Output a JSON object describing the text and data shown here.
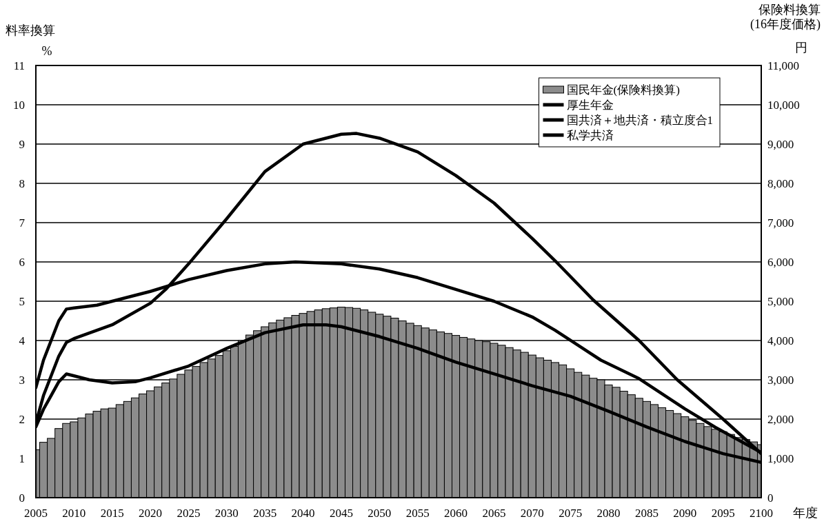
{
  "chart_data": {
    "type": "line",
    "xlabel": "年度",
    "ylabel": "料率換算",
    "y2label": "保険料換算(16年度価格)",
    "annotations": [
      "%",
      "円"
    ],
    "xlim": [
      2005,
      2100
    ],
    "xticks": [
      2005,
      2010,
      2015,
      2020,
      2025,
      2030,
      2035,
      2040,
      2045,
      2050,
      2055,
      2060,
      2065,
      2070,
      2075,
      2080,
      2085,
      2090,
      2095,
      2100
    ],
    "ylim": [
      0,
      11
    ],
    "yticks": [
      0,
      1,
      2,
      3,
      4,
      5,
      6,
      7,
      8,
      9,
      10,
      11
    ],
    "y2lim": [
      0,
      11000
    ],
    "y2ticks": [
      0,
      {
        "value": 1000,
        "label": "1,000"
      },
      {
        "value": 2000,
        "label": "2,000"
      },
      {
        "value": 3000,
        "label": "3,000"
      },
      {
        "value": 4000,
        "label": "4,000"
      },
      {
        "value": 5000,
        "label": "5,000"
      },
      {
        "value": 6000,
        "label": "6,000"
      },
      {
        "value": 7000,
        "label": "7,000"
      },
      {
        "value": 8000,
        "label": "8,000"
      },
      {
        "value": 9000,
        "label": "9,000"
      },
      {
        "value": 10000,
        "label": "10,000"
      },
      {
        "value": 11000,
        "label": "11,000"
      }
    ],
    "grid": "y",
    "legend": "top right",
    "line_style": "solid",
    "marker": "none",
    "series": [
      {
        "name": "国民年金(保険料換算)",
        "type": "bar",
        "axis": "y2",
        "color": "#8c8c8c",
        "x": [
          2005,
          2006,
          2007,
          2008,
          2009,
          2010,
          2011,
          2012,
          2013,
          2014,
          2015,
          2016,
          2017,
          2018,
          2019,
          2020,
          2021,
          2022,
          2023,
          2024,
          2025,
          2026,
          2027,
          2028,
          2029,
          2030,
          2031,
          2032,
          2033,
          2034,
          2035,
          2036,
          2037,
          2038,
          2039,
          2040,
          2041,
          2042,
          2043,
          2044,
          2045,
          2046,
          2047,
          2048,
          2049,
          2050,
          2051,
          2052,
          2053,
          2054,
          2055,
          2056,
          2057,
          2058,
          2059,
          2060,
          2061,
          2062,
          2063,
          2064,
          2065,
          2066,
          2067,
          2068,
          2069,
          2070,
          2071,
          2072,
          2073,
          2074,
          2075,
          2076,
          2077,
          2078,
          2079,
          2080,
          2081,
          2082,
          2083,
          2084,
          2085,
          2086,
          2087,
          2088,
          2089,
          2090,
          2091,
          2092,
          2093,
          2094,
          2095,
          2096,
          2097,
          2098,
          2099,
          2100
        ],
        "values": [
          1220,
          1410,
          1510,
          1760,
          1890,
          1930,
          2030,
          2130,
          2200,
          2260,
          2280,
          2370,
          2450,
          2540,
          2640,
          2720,
          2820,
          2920,
          3020,
          3140,
          3250,
          3340,
          3440,
          3530,
          3620,
          3740,
          3850,
          4000,
          4140,
          4250,
          4350,
          4450,
          4520,
          4580,
          4640,
          4690,
          4740,
          4780,
          4810,
          4830,
          4850,
          4840,
          4820,
          4780,
          4720,
          4670,
          4620,
          4570,
          4500,
          4440,
          4380,
          4320,
          4270,
          4220,
          4180,
          4130,
          4080,
          4040,
          4000,
          3970,
          3930,
          3880,
          3820,
          3760,
          3700,
          3630,
          3560,
          3500,
          3440,
          3380,
          3280,
          3190,
          3120,
          3040,
          3000,
          2870,
          2810,
          2710,
          2620,
          2530,
          2450,
          2370,
          2290,
          2220,
          2140,
          2060,
          1970,
          1890,
          1810,
          1740,
          1680,
          1610,
          1530,
          1480,
          1420,
          1350
        ]
      },
      {
        "name": "厚生年金",
        "color": "#000000",
        "x": [
          2005,
          2006,
          2007,
          2008,
          2009,
          2010,
          2015,
          2020,
          2022,
          2025,
          2030,
          2035,
          2040,
          2045,
          2047,
          2050,
          2055,
          2060,
          2065,
          2070,
          2073,
          2078,
          2084,
          2089,
          2095,
          2100
        ],
        "values": [
          1.9,
          2.6,
          3.1,
          3.6,
          3.95,
          4.05,
          4.4,
          4.95,
          5.3,
          5.95,
          7.1,
          8.3,
          9.0,
          9.25,
          9.27,
          9.15,
          8.8,
          8.2,
          7.5,
          6.6,
          6.03,
          5.03,
          4.0,
          3.0,
          2.0,
          1.12
        ]
      },
      {
        "name": "国共済＋地共済・積立度合1",
        "color": "#000000",
        "x": [
          2005,
          2006,
          2007,
          2008,
          2009,
          2010,
          2013,
          2015,
          2020,
          2025,
          2030,
          2035,
          2039,
          2045,
          2050,
          2055,
          2060,
          2065,
          2070,
          2073,
          2079,
          2084,
          2090,
          2094,
          2100
        ],
        "values": [
          2.8,
          3.5,
          4.0,
          4.5,
          4.8,
          4.83,
          4.9,
          5.0,
          5.25,
          5.55,
          5.78,
          5.95,
          6.0,
          5.95,
          5.82,
          5.6,
          5.3,
          5.0,
          4.6,
          4.26,
          3.5,
          3.03,
          2.26,
          1.79,
          1.15
        ]
      },
      {
        "name": "私学共済",
        "color": "#000000",
        "x": [
          2005,
          2006,
          2007,
          2008,
          2009,
          2010,
          2012,
          2015,
          2018,
          2020,
          2025,
          2030,
          2035,
          2040,
          2043,
          2045,
          2050,
          2055,
          2060,
          2065,
          2070,
          2075,
          2080,
          2085,
          2090,
          2095,
          2100
        ],
        "values": [
          1.8,
          2.25,
          2.6,
          2.95,
          3.15,
          3.1,
          3.0,
          2.92,
          2.95,
          3.05,
          3.35,
          3.8,
          4.2,
          4.4,
          4.4,
          4.35,
          4.1,
          3.8,
          3.45,
          3.15,
          2.85,
          2.58,
          2.2,
          1.8,
          1.43,
          1.12,
          0.9
        ]
      }
    ]
  }
}
